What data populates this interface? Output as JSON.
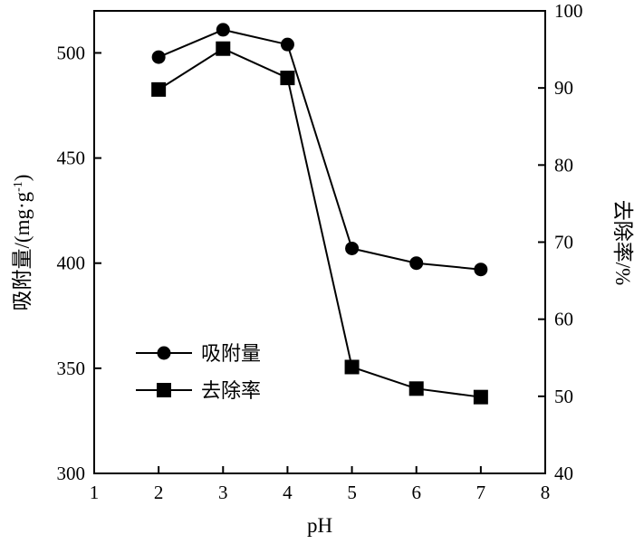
{
  "chart_data": {
    "type": "line",
    "xlabel": "pH",
    "ylabel_left": "吸附量/(mg·g",
    "ylabel_left_sup": "-1",
    "ylabel_left_end": ")",
    "ylabel_right": "去除率/%",
    "xlim": [
      1,
      8
    ],
    "ylim_left": [
      300,
      520
    ],
    "ylim_right": [
      40,
      100
    ],
    "x_ticks": [
      "1",
      "2",
      "3",
      "4",
      "5",
      "6",
      "7",
      "8"
    ],
    "y_left_ticks": [
      "300",
      "350",
      "400",
      "450",
      "500"
    ],
    "y_right_ticks": [
      "40",
      "50",
      "60",
      "70",
      "80",
      "90",
      "100"
    ],
    "legend_position": "lower-left",
    "series": [
      {
        "name": "吸附量",
        "axis": "left",
        "marker": "circle",
        "x": [
          2,
          3,
          4,
          5,
          6,
          7
        ],
        "values": [
          498,
          511,
          504,
          407,
          400,
          397
        ]
      },
      {
        "name": "去除率",
        "axis": "right",
        "marker": "square",
        "x": [
          2,
          3,
          4,
          5,
          6,
          7
        ],
        "values": [
          89.8,
          95.1,
          91.3,
          53.8,
          51.0,
          49.9
        ]
      }
    ]
  }
}
